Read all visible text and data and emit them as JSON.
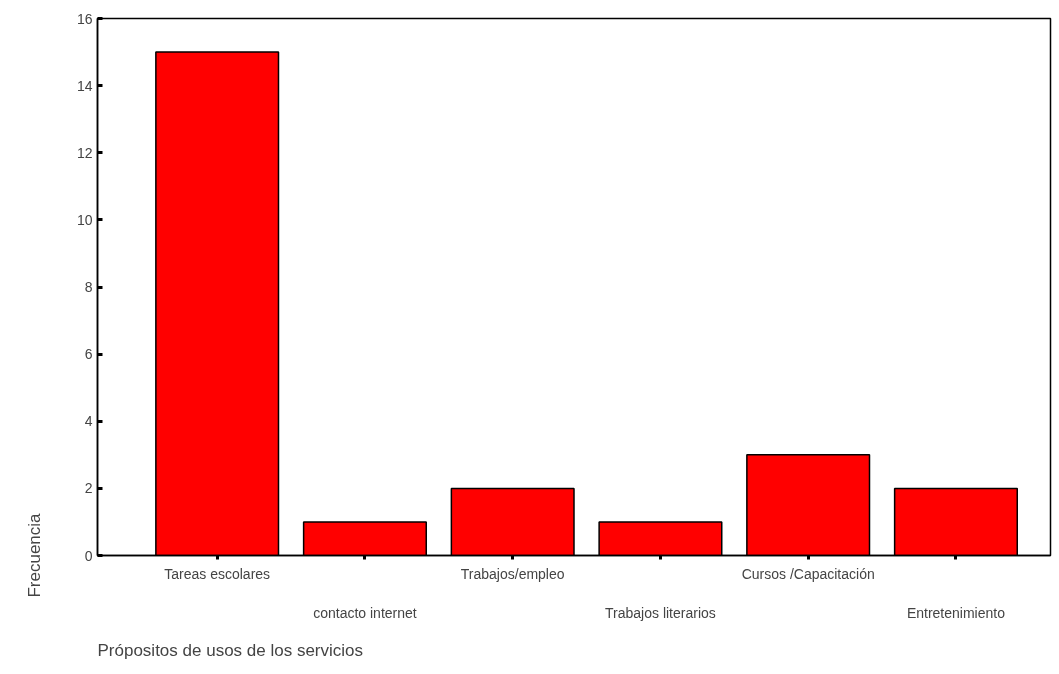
{
  "chart_data": {
    "type": "bar",
    "xlabel": "Própositos de usos de los servicios",
    "ylabel": "Frecuencia",
    "categories": [
      "Tareas escolares",
      "contacto internet",
      "Trabajos/empleo",
      "Trabajos literarios",
      "Cursos /Capacitación",
      "Entretenimiento"
    ],
    "values": [
      15,
      1,
      2,
      1,
      3,
      2
    ],
    "color": "#ff0000",
    "ylim": [
      0,
      16
    ],
    "yticks": [
      0,
      2,
      4,
      6,
      8,
      10,
      12,
      14,
      16
    ],
    "grid": false
  }
}
